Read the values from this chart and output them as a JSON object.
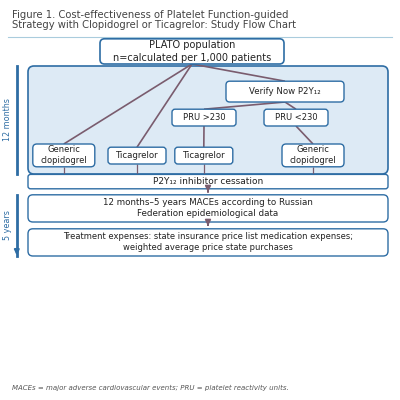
{
  "title_line1": "Figure 1. Cost-effectiveness of Platelet Function-guided",
  "title_line2": "Strategy with Clopidogrel or Ticagrelor: Study Flow Chart",
  "footer": "MACEs = major adverse cardiovascular events; PRU = platelet reactivity units.",
  "box_border_color": "#2e6da4",
  "box_fill_color": "#ffffff",
  "outer_box_fill": "#ddeaf5",
  "arrow_color": "#7a5c6e",
  "line_color": "#7a5c6e",
  "label_12months": "12 months",
  "label_5years": "5 years",
  "boxes": {
    "plato": "PLATO population\nn=calculated per 1,000 patients",
    "verify": "Verify Now P2Y₁₂",
    "pru_gt230": "PRU >230",
    "pru_lt230": "PRU <230",
    "gen_clop1": "Generic\nclopidogrel",
    "ticagrelor1": "Ticagrelor",
    "ticagrelor2": "Ticagrelor",
    "gen_clop2": "Generic\nclopidogrel",
    "p2y12": "P2Y₁₂ inhibitor cessation",
    "maces": "12 months–5 years MACEs according to Russian\nFederation epidemiological data",
    "treatment": "Treatment expenses: state insurance price list medication expenses;\nweighted average price state purchases"
  },
  "background_color": "#ffffff",
  "title_color": "#444444",
  "text_color": "#222222",
  "side_label_color": "#2e6da4",
  "separator_color": "#aaccdd"
}
